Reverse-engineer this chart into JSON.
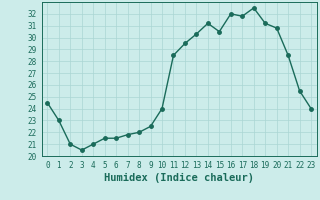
{
  "x": [
    0,
    1,
    2,
    3,
    4,
    5,
    6,
    7,
    8,
    9,
    10,
    11,
    12,
    13,
    14,
    15,
    16,
    17,
    18,
    19,
    20,
    21,
    22,
    23
  ],
  "y": [
    24.5,
    23.0,
    21.0,
    20.5,
    21.0,
    21.5,
    21.5,
    21.8,
    22.0,
    22.5,
    24.0,
    28.5,
    29.5,
    30.3,
    31.2,
    30.5,
    32.0,
    31.8,
    32.5,
    31.2,
    30.8,
    28.5,
    25.5,
    24.0
  ],
  "line_color": "#1a6b5a",
  "marker": "o",
  "markersize": 2.5,
  "linewidth": 1.0,
  "bg_color": "#ccecea",
  "grid_color": "#aad6d4",
  "xlabel": "Humidex (Indice chaleur)",
  "xlim": [
    -0.5,
    23.5
  ],
  "ylim": [
    20,
    33
  ],
  "yticks": [
    20,
    21,
    22,
    23,
    24,
    25,
    26,
    27,
    28,
    29,
    30,
    31,
    32
  ],
  "xticks": [
    0,
    1,
    2,
    3,
    4,
    5,
    6,
    7,
    8,
    9,
    10,
    11,
    12,
    13,
    14,
    15,
    16,
    17,
    18,
    19,
    20,
    21,
    22,
    23
  ],
  "tick_fontsize": 5.5,
  "xlabel_fontsize": 7.5
}
